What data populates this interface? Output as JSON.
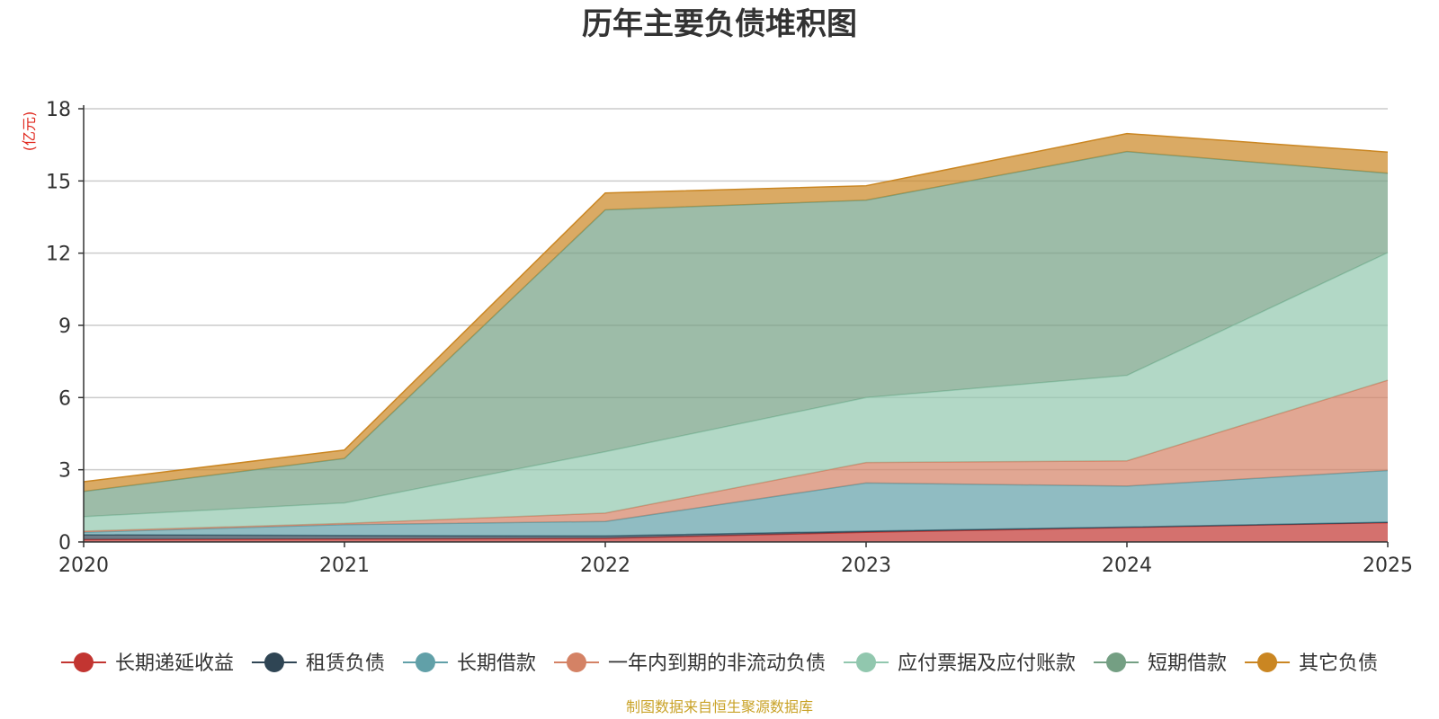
{
  "chart_data": {
    "type": "area",
    "stacked": true,
    "title": "历年主要负债堆积图",
    "unit_label": "(亿元)",
    "source": "制图数据来自恒生聚源数据库",
    "x": [
      "2020",
      "2021",
      "2022",
      "2023",
      "2024",
      "2025"
    ],
    "ylim": [
      0,
      18
    ],
    "yticks": [
      0,
      3,
      6,
      9,
      12,
      15,
      18
    ],
    "grid": true,
    "legend_position": "bottom",
    "series": [
      {
        "name": "长期递延收益",
        "color": "#c23531",
        "values": [
          0.1,
          0.12,
          0.15,
          0.4,
          0.6,
          0.8
        ]
      },
      {
        "name": "租赁负债",
        "color": "#2f4554",
        "values": [
          0.2,
          0.15,
          0.1,
          0.05,
          0.02,
          0.02
        ]
      },
      {
        "name": "长期借款",
        "color": "#61a0a8",
        "values": [
          0.1,
          0.45,
          0.6,
          2.0,
          1.7,
          2.15
        ]
      },
      {
        "name": "一年内到期的非流动负债",
        "color": "#d48265",
        "values": [
          0.05,
          0.05,
          0.35,
          0.85,
          1.05,
          3.75
        ]
      },
      {
        "name": "应付票据及应付账款",
        "color": "#91c7ae",
        "values": [
          0.6,
          0.85,
          2.55,
          2.7,
          3.55,
          5.3
        ]
      },
      {
        "name": "短期借款",
        "color": "#749f83",
        "values": [
          1.05,
          1.85,
          10.05,
          8.2,
          9.3,
          3.3
        ]
      },
      {
        "name": "其它负债",
        "color": "#ca8622",
        "values": [
          0.4,
          0.35,
          0.7,
          0.6,
          0.75,
          0.88
        ]
      }
    ],
    "colors": {
      "title": "#333333",
      "unit": "#e0261c",
      "source": "#c9a227",
      "grid": "#cccccc",
      "axis": "#333333"
    }
  }
}
